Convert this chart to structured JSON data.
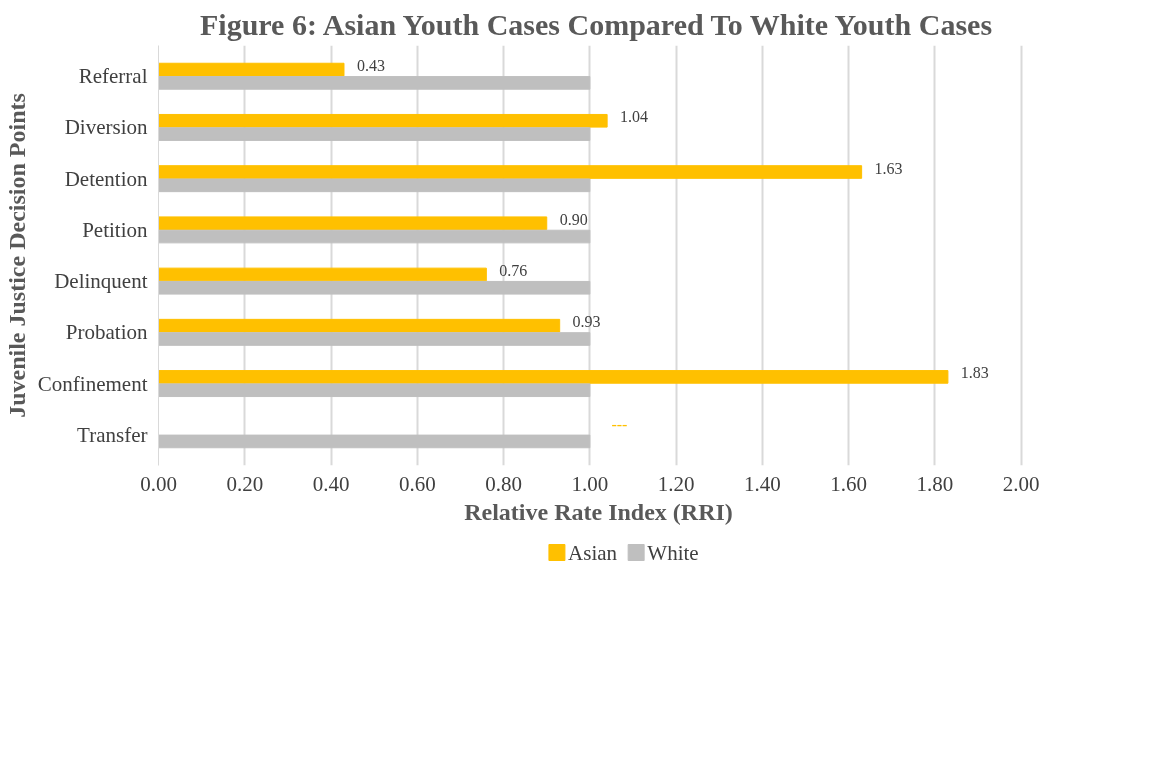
{
  "chart_data": {
    "type": "bar",
    "orientation": "horizontal",
    "title": "Figure 6: Asian Youth Cases Compared To White Youth Cases",
    "xlabel": "Relative Rate Index (RRI)",
    "ylabel": "Juvenile Justice Decision Points",
    "categories": [
      "Referral",
      "Diversion",
      "Detention",
      "Petition",
      "Delinquent",
      "Probation",
      "Confinement",
      "Transfer"
    ],
    "series": [
      {
        "name": "Asian",
        "color": "#ffc000",
        "values": [
          0.43,
          1.04,
          1.63,
          0.9,
          0.76,
          0.93,
          1.83,
          null
        ],
        "value_labels": [
          "0.43",
          "1.04",
          "1.63",
          "0.90",
          "0.76",
          "0.93",
          "1.83",
          "---"
        ]
      },
      {
        "name": "White",
        "color": "#bfbfbf",
        "values": [
          1.0,
          1.0,
          1.0,
          1.0,
          1.0,
          1.0,
          1.0,
          1.0
        ]
      }
    ],
    "xlim": [
      0,
      2
    ],
    "xticks": [
      {
        "value": 0,
        "label": "0.00"
      },
      {
        "value": 0.2,
        "label": "0.20"
      },
      {
        "value": 0.4,
        "label": "0.40"
      },
      {
        "value": 0.6,
        "label": "0.60"
      },
      {
        "value": 0.8,
        "label": "0.80"
      },
      {
        "value": 1.0,
        "label": "1.00"
      },
      {
        "value": 1.2,
        "label": "1.20"
      },
      {
        "value": 1.4,
        "label": "1.40"
      },
      {
        "value": 1.6,
        "label": "1.60"
      },
      {
        "value": 1.8,
        "label": "1.80"
      },
      {
        "value": 2.0,
        "label": "2.00"
      }
    ],
    "grid": "x",
    "legend": "bottom"
  }
}
